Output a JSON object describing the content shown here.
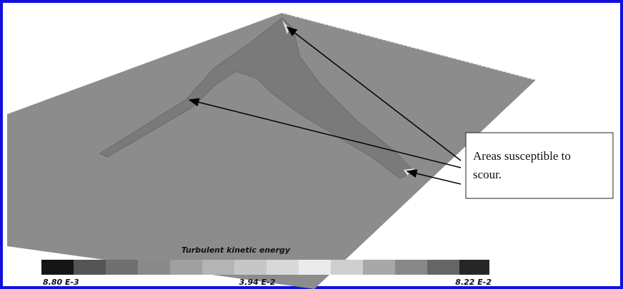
{
  "callout": {
    "lines": [
      "Areas susceptible to",
      "scour."
    ]
  },
  "legend": {
    "title": "Turbulent kinetic energy",
    "labels": [
      "8.80 E-3",
      "3.94 E-2",
      "8.22 E-2"
    ]
  }
}
